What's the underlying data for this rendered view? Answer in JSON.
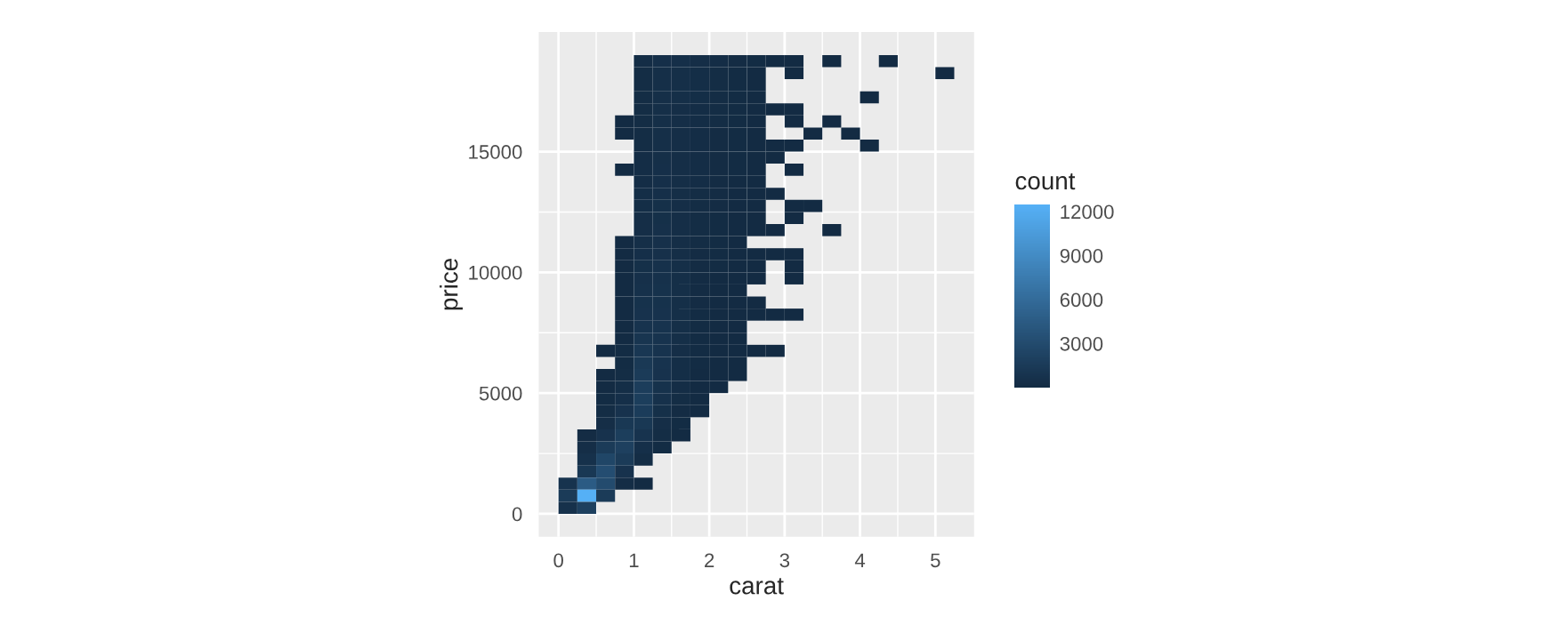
{
  "chart_data": {
    "type": "heatmap",
    "xlabel": "carat",
    "ylabel": "price",
    "clabel": "count",
    "x": [
      0.125,
      0.375,
      0.625,
      0.875,
      1.125,
      1.375,
      1.625,
      1.875,
      2.125,
      2.375,
      2.625,
      2.875,
      3.125,
      3.375,
      3.625,
      3.875,
      4.125,
      4.375,
      4.625,
      4.875,
      5.125
    ],
    "y": [
      18750,
      18250,
      17750,
      17250,
      16750,
      16250,
      15750,
      15250,
      14750,
      14250,
      13750,
      13250,
      12750,
      12250,
      11750,
      11250,
      10750,
      10250,
      9750,
      9250,
      8750,
      8250,
      7750,
      7250,
      6750,
      6250,
      5750,
      5250,
      4750,
      4250,
      3750,
      3250,
      2750,
      2250,
      1750,
      1250,
      750,
      250
    ],
    "cells": [
      [
        null,
        null,
        null,
        null,
        200,
        400,
        400,
        300,
        200,
        100,
        60,
        30,
        10,
        null,
        2,
        null,
        null,
        1,
        null,
        null,
        null
      ],
      [
        null,
        null,
        null,
        null,
        180,
        380,
        380,
        280,
        180,
        90,
        40,
        null,
        8,
        null,
        null,
        null,
        null,
        null,
        null,
        null,
        1
      ],
      [
        null,
        null,
        null,
        null,
        170,
        370,
        360,
        260,
        170,
        80,
        30,
        null,
        null,
        null,
        null,
        null,
        null,
        null,
        null,
        null,
        null
      ],
      [
        null,
        null,
        null,
        null,
        160,
        360,
        350,
        250,
        160,
        80,
        30,
        null,
        null,
        null,
        null,
        null,
        2,
        null,
        null,
        null,
        null
      ],
      [
        null,
        null,
        null,
        null,
        160,
        360,
        340,
        240,
        150,
        70,
        30,
        10,
        6,
        null,
        null,
        null,
        null,
        null,
        null,
        null,
        null
      ],
      [
        null,
        null,
        null,
        5,
        170,
        360,
        330,
        230,
        150,
        70,
        25,
        null,
        6,
        null,
        2,
        null,
        null,
        null,
        null,
        null,
        null
      ],
      [
        null,
        null,
        null,
        5,
        180,
        370,
        330,
        220,
        140,
        60,
        25,
        null,
        null,
        3,
        null,
        2,
        null,
        null,
        null,
        null,
        null
      ],
      [
        null,
        null,
        null,
        null,
        190,
        380,
        330,
        220,
        140,
        60,
        25,
        10,
        5,
        null,
        null,
        null,
        2,
        null,
        null,
        null,
        null
      ],
      [
        null,
        null,
        null,
        null,
        200,
        390,
        330,
        210,
        130,
        50,
        20,
        8,
        null,
        null,
        null,
        null,
        null,
        null,
        null,
        null,
        null
      ],
      [
        null,
        null,
        null,
        4,
        220,
        400,
        330,
        200,
        120,
        50,
        20,
        null,
        4,
        null,
        null,
        null,
        null,
        null,
        null,
        null,
        null
      ],
      [
        null,
        null,
        null,
        null,
        240,
        410,
        330,
        200,
        110,
        40,
        15,
        null,
        null,
        null,
        null,
        null,
        null,
        null,
        null,
        null,
        null
      ],
      [
        null,
        null,
        null,
        null,
        260,
        430,
        330,
        190,
        100,
        40,
        15,
        6,
        null,
        null,
        null,
        null,
        null,
        null,
        null,
        null,
        null
      ],
      [
        null,
        null,
        null,
        null,
        280,
        450,
        330,
        180,
        100,
        35,
        12,
        null,
        4,
        3,
        null,
        null,
        null,
        null,
        null,
        null,
        null
      ],
      [
        null,
        null,
        null,
        null,
        300,
        470,
        330,
        170,
        90,
        30,
        10,
        null,
        4,
        null,
        null,
        null,
        null,
        null,
        null,
        null,
        null
      ],
      [
        null,
        null,
        null,
        null,
        330,
        490,
        330,
        160,
        80,
        25,
        10,
        5,
        null,
        null,
        2,
        null,
        null,
        null,
        null,
        null,
        null
      ],
      [
        null,
        null,
        null,
        5,
        360,
        510,
        330,
        150,
        70,
        20,
        null,
        null,
        null,
        null,
        null,
        null,
        null,
        null,
        null,
        null,
        null
      ],
      [
        null,
        null,
        null,
        8,
        400,
        530,
        340,
        140,
        60,
        20,
        8,
        5,
        3,
        null,
        null,
        null,
        null,
        null,
        null,
        null,
        null
      ],
      [
        null,
        null,
        null,
        10,
        450,
        560,
        350,
        130,
        50,
        15,
        6,
        null,
        3,
        null,
        null,
        null,
        null,
        null,
        null,
        null,
        null
      ],
      [
        null,
        null,
        null,
        12,
        500,
        600,
        360,
        120,
        45,
        12,
        5,
        null,
        2,
        null,
        null,
        null,
        null,
        null,
        null,
        null,
        null
      ],
      [
        null,
        null,
        null,
        15,
        560,
        640,
        370,
        110,
        40,
        10,
        null,
        null,
        null,
        null,
        null,
        null,
        null,
        null,
        null,
        null,
        null
      ],
      [
        null,
        null,
        null,
        20,
        640,
        680,
        380,
        100,
        35,
        8,
        4,
        null,
        null,
        null,
        null,
        null,
        null,
        null,
        null,
        null,
        null
      ],
      [
        null,
        null,
        null,
        25,
        720,
        720,
        380,
        90,
        30,
        8,
        4,
        3,
        2,
        null,
        null,
        null,
        null,
        null,
        null,
        null,
        null
      ],
      [
        null,
        null,
        null,
        30,
        820,
        760,
        370,
        80,
        25,
        6,
        null,
        null,
        null,
        null,
        null,
        null,
        null,
        null,
        null,
        null,
        null
      ],
      [
        null,
        null,
        null,
        40,
        950,
        780,
        350,
        70,
        20,
        5,
        null,
        null,
        null,
        null,
        null,
        null,
        null,
        null,
        null,
        null,
        null
      ],
      [
        null,
        null,
        4,
        60,
        1100,
        780,
        320,
        60,
        15,
        4,
        3,
        2,
        null,
        null,
        null,
        null,
        null,
        null,
        null,
        null,
        null
      ],
      [
        null,
        null,
        null,
        90,
        1300,
        760,
        290,
        50,
        10,
        3,
        null,
        null,
        null,
        null,
        null,
        null,
        null,
        null,
        null,
        null,
        null
      ],
      [
        null,
        null,
        20,
        150,
        1500,
        720,
        250,
        40,
        8,
        2,
        null,
        null,
        null,
        null,
        null,
        null,
        null,
        null,
        null,
        null,
        null
      ],
      [
        null,
        null,
        40,
        250,
        1700,
        650,
        200,
        30,
        5,
        null,
        null,
        null,
        null,
        null,
        null,
        null,
        null,
        null,
        null,
        null,
        null
      ],
      [
        null,
        null,
        80,
        400,
        1800,
        560,
        150,
        20,
        null,
        null,
        null,
        null,
        null,
        null,
        null,
        null,
        null,
        null,
        null,
        null,
        null
      ],
      [
        null,
        null,
        150,
        700,
        1600,
        450,
        100,
        10,
        null,
        null,
        null,
        null,
        null,
        null,
        null,
        null,
        null,
        null,
        null,
        null,
        null
      ],
      [
        null,
        null,
        300,
        1200,
        1200,
        300,
        60,
        null,
        null,
        null,
        null,
        null,
        null,
        null,
        null,
        null,
        null,
        null,
        null,
        null,
        null
      ],
      [
        null,
        100,
        700,
        1800,
        800,
        150,
        20,
        null,
        null,
        null,
        null,
        null,
        null,
        null,
        null,
        null,
        null,
        null,
        null,
        null,
        null
      ],
      [
        null,
        300,
        1500,
        2000,
        400,
        50,
        null,
        null,
        null,
        null,
        null,
        null,
        null,
        null,
        null,
        null,
        null,
        null,
        null,
        null,
        null
      ],
      [
        null,
        600,
        2500,
        1500,
        150,
        null,
        null,
        null,
        null,
        null,
        null,
        null,
        null,
        null,
        null,
        null,
        null,
        null,
        null,
        null,
        null
      ],
      [
        null,
        1200,
        3200,
        700,
        null,
        null,
        null,
        null,
        null,
        null,
        null,
        null,
        null,
        null,
        null,
        null,
        null,
        null,
        null,
        null,
        null
      ],
      [
        800,
        4500,
        3000,
        200,
        20,
        null,
        null,
        null,
        null,
        null,
        null,
        null,
        null,
        null,
        null,
        null,
        null,
        null,
        null,
        null,
        null
      ],
      [
        1500,
        12400,
        1500,
        null,
        null,
        null,
        null,
        null,
        null,
        null,
        null,
        null,
        null,
        null,
        null,
        null,
        null,
        null,
        null,
        null,
        null
      ],
      [
        600,
        2000,
        null,
        null,
        null,
        null,
        null,
        null,
        null,
        null,
        null,
        null,
        null,
        null,
        null,
        null,
        null,
        null,
        null,
        null,
        null
      ]
    ],
    "clim": [
      1,
      12500
    ],
    "cticks": [
      3000,
      6000,
      9000,
      12000
    ],
    "xlim": [
      -0.2625,
      5.5125
    ],
    "xticks": [
      0,
      1,
      2,
      3,
      4,
      5
    ],
    "ylim": [
      -950,
      19950
    ],
    "yticks": [
      0,
      5000,
      10000,
      15000
    ],
    "grid": true
  }
}
